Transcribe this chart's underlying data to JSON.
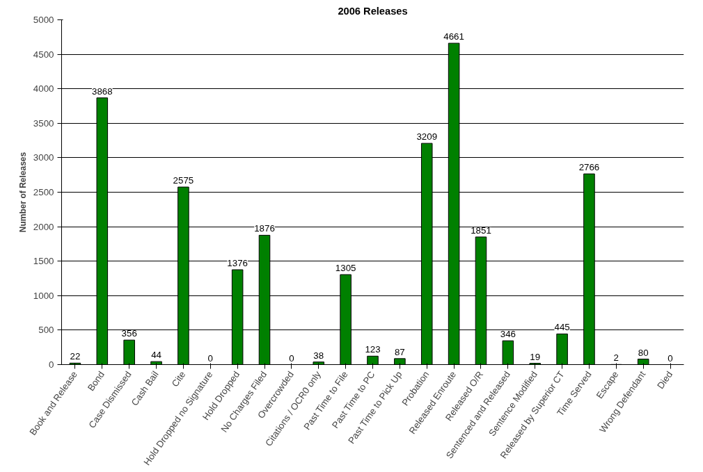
{
  "chart_data": {
    "type": "bar",
    "title": "2006 Releases",
    "ylabel": "Number of Releases",
    "categories": [
      "Book and Release",
      "Bond",
      "Case Dismissed",
      "Cash Bail",
      "Cite",
      "Hold Dropped no Signature",
      "Hold Dropped",
      "No Charges Filed",
      "Overcrowded",
      "Citations / OCR0 only",
      "Past Time to File",
      "Past Time to PC",
      "Past Time to Pick Up",
      "Probation",
      "Released Enroute",
      "Released O/R",
      "Sentenced and Released",
      "Sentence Modified",
      "Released by Superior CT",
      "Time Served",
      "Escape",
      "Wrong Defendant",
      "Died"
    ],
    "values": [
      22,
      3868,
      356,
      44,
      2575,
      0,
      1376,
      1876,
      0,
      38,
      1305,
      123,
      87,
      3209,
      4661,
      1851,
      346,
      19,
      445,
      2766,
      2,
      80,
      0
    ],
    "color": "#008000",
    "ylim": [
      0,
      5000
    ],
    "yticks": [
      0,
      500,
      1000,
      1500,
      2000,
      2500,
      3000,
      3500,
      4000,
      4500,
      5000
    ],
    "grid": "y",
    "data_labels": true
  }
}
